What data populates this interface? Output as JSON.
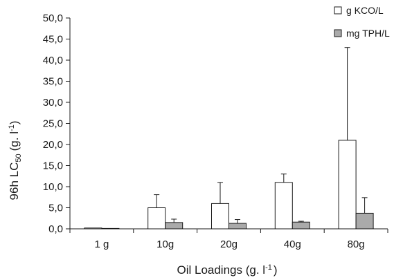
{
  "chart_data": {
    "type": "bar",
    "xlabel": "Oil Loadings (g. l",
    "xlabel_sup": "-1",
    "xlabel_tail": ")",
    "ylabel": "96h LC",
    "ylabel_sub": "50",
    "ylabel_tail": "(g. l",
    "ylabel_sup": "-1",
    "ylabel_end": ")",
    "categories": [
      "1 g",
      "10g",
      "20g",
      "40g",
      "80g"
    ],
    "ylim": [
      0,
      50
    ],
    "ytick_labels": [
      "0,0",
      "5,0",
      "10,0",
      "15,0",
      "20,0",
      "25,0",
      "30,0",
      "35,0",
      "40,0",
      "45,0",
      "50,0"
    ],
    "grid": false,
    "legend_position": "top-right",
    "series": [
      {
        "name": "g KCO/L",
        "color": "#ffffff",
        "values": [
          0.2,
          5.0,
          6.0,
          11.0,
          21.0
        ],
        "error": [
          0,
          3.1,
          5.0,
          2.0,
          22.0
        ]
      },
      {
        "name": "mg TPH/L",
        "color": "#aaaaaa",
        "values": [
          0.1,
          1.5,
          1.3,
          1.6,
          3.7
        ],
        "error": [
          0,
          0.8,
          0.9,
          0.2,
          3.7
        ]
      }
    ]
  }
}
